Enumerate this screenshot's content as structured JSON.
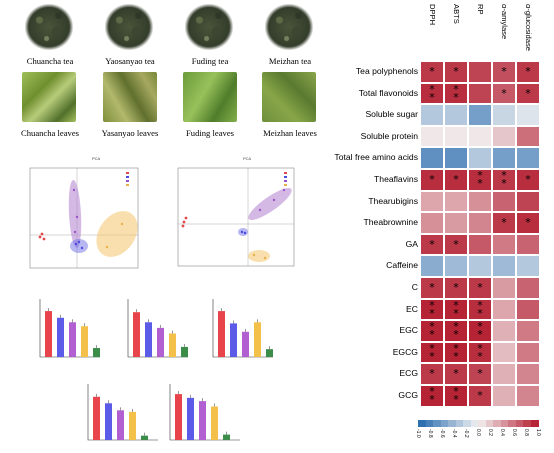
{
  "photos": {
    "tea": [
      {
        "label": "Chuancha tea",
        "icon": "tea-leaves-photo"
      },
      {
        "label": "Yaosanyao tea",
        "icon": "tea-leaves-photo"
      },
      {
        "label": "Fuding tea",
        "icon": "tea-leaves-photo"
      },
      {
        "label": "Meizhan tea",
        "icon": "tea-leaves-photo"
      }
    ],
    "leaves": [
      {
        "label": "Chuancha leaves",
        "icon": "brewed-leaves-photo"
      },
      {
        "label": "Yasanyao leaves",
        "icon": "brewed-leaves-photo"
      },
      {
        "label": "Fuding leaves",
        "icon": "brewed-leaves-photo"
      },
      {
        "label": "Meizhan leaves",
        "icon": "brewed-leaves-photo"
      }
    ]
  },
  "pca": [
    {
      "title": "PCA"
    },
    {
      "title": "PCA"
    }
  ],
  "heatmap": {
    "columns": [
      "DPPH",
      "ABTS",
      "RP",
      "α-amylase",
      "α-glucosidase"
    ],
    "rows": [
      {
        "label": "Tea polyphenols",
        "values": [
          0.85,
          0.85,
          0.8,
          0.75,
          0.85
        ],
        "stars": [
          1,
          1,
          0,
          1,
          1
        ]
      },
      {
        "label": "Total flavonoids",
        "values": [
          0.9,
          0.9,
          0.8,
          0.7,
          0.85
        ],
        "stars": [
          2,
          2,
          0,
          1,
          1
        ]
      },
      {
        "label": "Soluble sugar",
        "values": [
          -0.3,
          -0.3,
          -0.6,
          -0.2,
          -0.1
        ],
        "stars": [
          0,
          0,
          0,
          0,
          0
        ]
      },
      {
        "label": "Soluble protein",
        "values": [
          0.05,
          0.05,
          0.05,
          0.2,
          0.6
        ],
        "stars": [
          0,
          0,
          0,
          0,
          0
        ]
      },
      {
        "label": "Total free amino acids",
        "values": [
          -0.7,
          -0.7,
          -0.3,
          -0.6,
          -0.6
        ],
        "stars": [
          0,
          0,
          0,
          0,
          0
        ]
      },
      {
        "label": "Theaflavins",
        "values": [
          0.9,
          0.9,
          0.9,
          0.85,
          0.9
        ],
        "stars": [
          1,
          1,
          2,
          2,
          1
        ]
      },
      {
        "label": "Thearubigins",
        "values": [
          0.35,
          0.35,
          0.45,
          0.65,
          0.8
        ],
        "stars": [
          0,
          0,
          0,
          0,
          0
        ]
      },
      {
        "label": "Theabrownine",
        "values": [
          0.45,
          0.4,
          0.5,
          0.85,
          0.9
        ],
        "stars": [
          0,
          0,
          0,
          1,
          1
        ]
      },
      {
        "label": "GA",
        "values": [
          0.85,
          0.85,
          0.7,
          0.55,
          0.65
        ],
        "stars": [
          1,
          1,
          0,
          0,
          0
        ]
      },
      {
        "label": "Caffeine",
        "values": [
          -0.5,
          -0.4,
          -0.3,
          -0.4,
          -0.3
        ],
        "stars": [
          0,
          0,
          0,
          0,
          0
        ]
      },
      {
        "label": "C",
        "values": [
          0.85,
          0.85,
          0.85,
          0.4,
          0.65
        ],
        "stars": [
          1,
          1,
          1,
          0,
          0
        ]
      },
      {
        "label": "EC",
        "values": [
          0.95,
          0.95,
          0.9,
          0.35,
          0.7
        ],
        "stars": [
          2,
          2,
          2,
          0,
          0
        ]
      },
      {
        "label": "EGC",
        "values": [
          0.95,
          0.95,
          0.95,
          0.3,
          0.55
        ],
        "stars": [
          2,
          2,
          2,
          0,
          0
        ]
      },
      {
        "label": "EGCG",
        "values": [
          0.95,
          0.95,
          0.9,
          0.25,
          0.55
        ],
        "stars": [
          2,
          2,
          2,
          0,
          0
        ]
      },
      {
        "label": "ECG",
        "values": [
          0.85,
          0.85,
          0.8,
          0.3,
          0.5
        ],
        "stars": [
          1,
          1,
          1,
          0,
          0
        ]
      },
      {
        "label": "GCG",
        "values": [
          0.95,
          0.95,
          0.85,
          0.3,
          0.5
        ],
        "stars": [
          2,
          2,
          1,
          0,
          0
        ]
      }
    ],
    "star_symbol": "*",
    "colorbar_ticks": [
      "-1.0",
      "-0.8",
      "-0.6",
      "-0.4",
      "-0.2",
      "0.0",
      "0.2",
      "0.4",
      "0.6",
      "0.8",
      "1.0"
    ],
    "colors": {
      "negative": "#2166ac",
      "neutral": "#f2f2f2",
      "positive": "#b2182b"
    }
  },
  "bar_groups": {
    "colors": [
      "#e8444c",
      "#5b5be8",
      "#b25fd1",
      "#f3c04a",
      "#3c8c4a"
    ],
    "charts": [
      {
        "values": [
          0.82,
          0.7,
          0.62,
          0.55,
          0.16
        ]
      },
      {
        "values": [
          0.8,
          0.62,
          0.52,
          0.42,
          0.18
        ]
      },
      {
        "values": [
          0.82,
          0.6,
          0.45,
          0.62,
          0.14
        ]
      },
      {
        "values": [
          0.8,
          0.68,
          0.55,
          0.52,
          0.08
        ]
      },
      {
        "values": [
          0.85,
          0.78,
          0.72,
          0.62,
          0.1
        ]
      }
    ]
  }
}
